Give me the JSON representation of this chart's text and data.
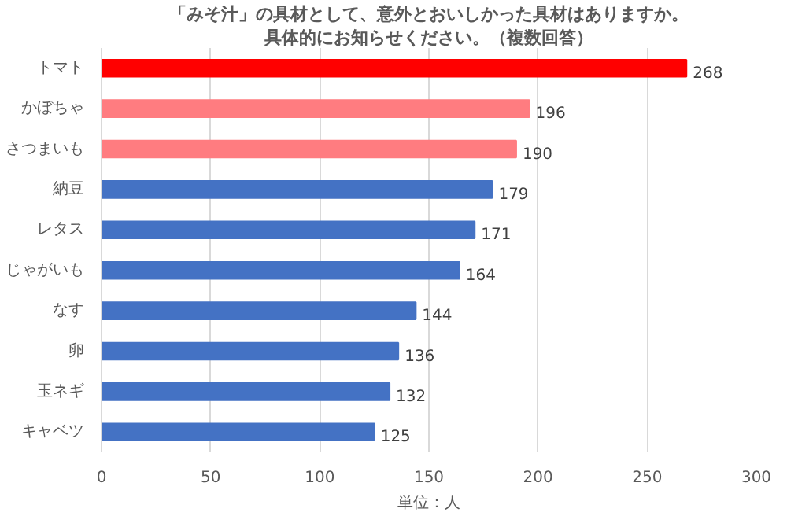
{
  "chart_data": {
    "type": "bar",
    "orientation": "horizontal",
    "title": "「みそ汁」の具材として、意外とおいしかった具材はありますか。",
    "subtitle": "具体的にお知らせください。（複数回答）",
    "xlabel": "単位：人",
    "categories": [
      "トマト",
      "かぼちゃ",
      "さつまいも",
      "納豆",
      "レタス",
      "じゃがいも",
      "なす",
      "卵",
      "玉ネギ",
      "キャベツ"
    ],
    "values": [
      268,
      196,
      190,
      179,
      171,
      164,
      144,
      136,
      132,
      125
    ],
    "colors": [
      "#ff0000",
      "#ff7c80",
      "#ff7c80",
      "#4472c4",
      "#4472c4",
      "#4472c4",
      "#4472c4",
      "#4472c4",
      "#4472c4",
      "#4472c4"
    ],
    "xlim": [
      0,
      300
    ],
    "xticks": [
      0,
      50,
      100,
      150,
      200,
      250,
      300
    ],
    "grid": "x",
    "data_labels": true
  }
}
